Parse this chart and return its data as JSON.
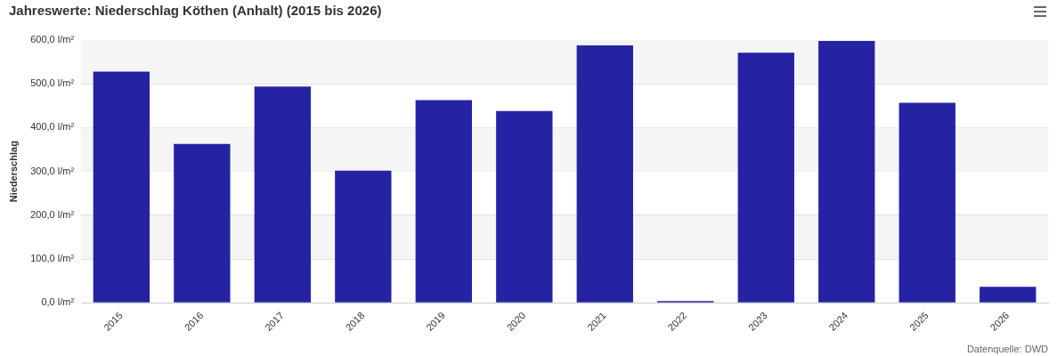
{
  "chart_data": {
    "type": "bar",
    "title": "Jahreswerte: Niederschlag Köthen (Anhalt) (2015 bis 2026)",
    "ylabel": "Niederschlag",
    "categories": [
      "2015",
      "2016",
      "2017",
      "2018",
      "2019",
      "2020",
      "2021",
      "2022",
      "2023",
      "2024",
      "2025",
      "2026"
    ],
    "values": [
      528,
      363,
      494,
      302,
      463,
      438,
      588,
      0,
      571,
      598,
      457,
      37
    ],
    "color": "#2523a4",
    "ylim": [
      0,
      600
    ],
    "yticks": [
      {
        "value": 0,
        "label": "0,0 l/m²"
      },
      {
        "value": 100,
        "label": "100,0 l/m²"
      },
      {
        "value": 200,
        "label": "200,0 l/m²"
      },
      {
        "value": 300,
        "label": "300,0 l/m²"
      },
      {
        "value": 400,
        "label": "400,0 l/m²"
      },
      {
        "value": 500,
        "label": "500,0 l/m²"
      },
      {
        "value": 600,
        "label": "600,0 l/m²"
      }
    ],
    "bands": [
      {
        "axis": "y",
        "from": 100,
        "to": 200,
        "color": "#f5f5f5"
      },
      {
        "axis": "y",
        "from": 300,
        "to": 400,
        "color": "#f5f5f5"
      },
      {
        "axis": "y",
        "from": 500,
        "to": 600,
        "color": "#f5f5f5"
      }
    ],
    "grid": "y",
    "annotations": [
      "Datenquelle: DWD"
    ]
  }
}
